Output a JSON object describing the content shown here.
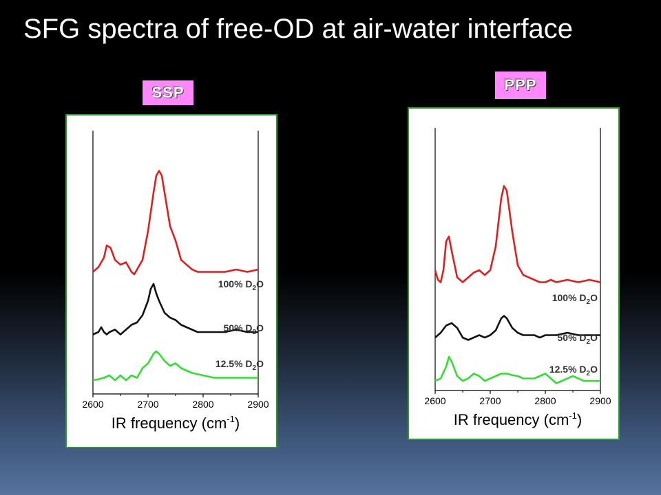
{
  "title": "SFG spectra of free-OD at air-water interface",
  "chart_data": [
    {
      "type": "line",
      "badge": "SSP",
      "xlabel_text": "IR frequency (cm",
      "xlabel_sup": "-1",
      "xlabel_close": ")",
      "xlim": [
        2600,
        2900
      ],
      "xticks": [
        "2600",
        "2700",
        "2800",
        "2900"
      ],
      "series": [
        {
          "name": "100% D2O",
          "label_main": "100% D",
          "label_sub": "2",
          "label_end": "O",
          "color": "#dd1f1f",
          "offset": 2.2,
          "scale": 1.0,
          "x": [
            2600,
            2610,
            2620,
            2625,
            2632,
            2640,
            2650,
            2660,
            2670,
            2675,
            2680,
            2690,
            2700,
            2710,
            2715,
            2720,
            2725,
            2730,
            2740,
            2750,
            2760,
            2770,
            2780,
            2790,
            2800,
            2820,
            2840,
            2860,
            2880,
            2900
          ],
          "y": [
            0.05,
            0.15,
            0.35,
            0.6,
            0.55,
            0.3,
            0.2,
            0.25,
            0.05,
            0.0,
            0.1,
            0.3,
            0.9,
            1.7,
            2.05,
            2.15,
            2.05,
            1.7,
            1.0,
            0.7,
            0.3,
            0.2,
            0.1,
            0.05,
            0.05,
            0.05,
            0.05,
            0.1,
            0.05,
            0.1
          ]
        },
        {
          "name": "50% D2O",
          "label_main": "50% D",
          "label_sub": "2",
          "label_end": "O",
          "color": "#111111",
          "offset": 0.95,
          "scale": 1.0,
          "x": [
            2600,
            2610,
            2615,
            2620,
            2625,
            2630,
            2640,
            2650,
            2660,
            2670,
            2680,
            2690,
            2700,
            2705,
            2710,
            2715,
            2720,
            2730,
            2740,
            2750,
            2760,
            2770,
            2780,
            2790,
            2800,
            2820,
            2840,
            2860,
            2880,
            2900
          ],
          "y": [
            0.0,
            0.05,
            0.15,
            0.05,
            0.0,
            0.05,
            0.1,
            0.0,
            0.1,
            0.2,
            0.25,
            0.4,
            0.7,
            0.95,
            1.05,
            0.85,
            0.7,
            0.45,
            0.35,
            0.3,
            0.2,
            0.15,
            0.1,
            0.05,
            0.05,
            0.05,
            0.05,
            0.1,
            0.05,
            0.05
          ]
        },
        {
          "name": "12.5% D2O",
          "label_main": "12.5% D",
          "label_sub": "2",
          "label_end": "O",
          "color": "#33dd33",
          "offset": 0.0,
          "scale": 1.0,
          "x": [
            2600,
            2610,
            2620,
            2630,
            2635,
            2640,
            2650,
            2660,
            2670,
            2680,
            2690,
            2700,
            2705,
            2710,
            2715,
            2720,
            2730,
            2740,
            2750,
            2760,
            2770,
            2780,
            2800,
            2820,
            2840,
            2860,
            2880,
            2900
          ],
          "y": [
            0.0,
            0.02,
            0.05,
            0.1,
            0.05,
            0.0,
            0.1,
            0.0,
            0.1,
            0.05,
            0.25,
            0.35,
            0.45,
            0.55,
            0.6,
            0.55,
            0.4,
            0.3,
            0.35,
            0.25,
            0.2,
            0.15,
            0.1,
            0.05,
            0.05,
            0.05,
            0.05,
            0.05
          ]
        }
      ]
    },
    {
      "type": "line",
      "badge": "PPP",
      "xlabel_text": "IR frequency (cm",
      "xlabel_sup": "-1",
      "xlabel_close": ")",
      "xlim": [
        2600,
        2900
      ],
      "xticks": [
        "2600",
        "2700",
        "2800",
        "2900"
      ],
      "series": [
        {
          "name": "100% D2O",
          "label_main": "100% D",
          "label_sub": "2",
          "label_end": "O",
          "color": "#dd1f1f",
          "offset": 2.0,
          "scale": 1.0,
          "x": [
            2600,
            2605,
            2610,
            2615,
            2620,
            2625,
            2630,
            2640,
            2650,
            2660,
            2670,
            2680,
            2690,
            2700,
            2710,
            2720,
            2725,
            2730,
            2740,
            2750,
            2760,
            2770,
            2780,
            2790,
            2800,
            2810,
            2820,
            2840,
            2860,
            2880,
            2900
          ],
          "y": [
            0.3,
            0.1,
            0.05,
            0.3,
            0.9,
            1.0,
            0.7,
            0.15,
            0.05,
            0.15,
            0.25,
            0.3,
            0.2,
            0.3,
            0.8,
            1.8,
            2.05,
            1.95,
            1.1,
            0.4,
            0.2,
            0.15,
            0.1,
            0.05,
            0.05,
            0.1,
            0.05,
            0.1,
            0.05,
            0.1,
            0.05
          ]
        },
        {
          "name": "50% D2O",
          "label_main": "50% D",
          "label_sub": "2",
          "label_end": "O",
          "color": "#111111",
          "offset": 0.9,
          "scale": 1.0,
          "x": [
            2600,
            2610,
            2620,
            2630,
            2640,
            2650,
            2660,
            2670,
            2680,
            2690,
            2700,
            2710,
            2720,
            2725,
            2730,
            2740,
            2750,
            2760,
            2770,
            2780,
            2790,
            2800,
            2820,
            2840,
            2860,
            2880,
            2900
          ],
          "y": [
            0.0,
            0.1,
            0.25,
            0.3,
            0.2,
            0.0,
            -0.05,
            0.0,
            0.05,
            0.0,
            0.05,
            0.15,
            0.4,
            0.45,
            0.4,
            0.2,
            0.1,
            0.05,
            0.05,
            0.05,
            0.0,
            0.05,
            0.05,
            0.1,
            0.05,
            0.05,
            0.05
          ]
        },
        {
          "name": "12.5% D2O",
          "label_main": "12.5% D",
          "label_sub": "2",
          "label_end": "O",
          "color": "#33dd33",
          "offset": 0.0,
          "scale": 1.0,
          "x": [
            2600,
            2610,
            2620,
            2625,
            2630,
            2640,
            2650,
            2660,
            2670,
            2680,
            2690,
            2700,
            2710,
            2720,
            2730,
            2740,
            2750,
            2760,
            2770,
            2780,
            2790,
            2800,
            2810,
            2820,
            2830,
            2840,
            2850,
            2860,
            2870,
            2880,
            2900
          ],
          "y": [
            0.0,
            0.05,
            0.3,
            0.5,
            0.4,
            0.1,
            0.0,
            0.05,
            0.15,
            0.1,
            0.0,
            0.05,
            0.1,
            0.15,
            0.15,
            0.12,
            0.1,
            0.05,
            0.05,
            0.05,
            0.1,
            0.15,
            0.05,
            -0.05,
            0.0,
            0.05,
            0.1,
            0.05,
            0.0,
            0.0,
            0.0
          ]
        }
      ]
    }
  ]
}
